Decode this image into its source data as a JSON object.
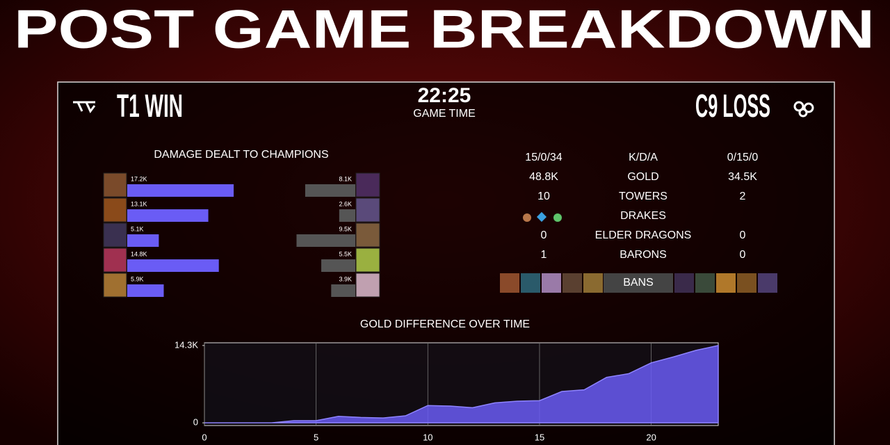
{
  "header": {
    "title": "POST GAME BREAKDOWN",
    "team_left": "T1 WIN",
    "game_time": "22:25",
    "game_time_label": "GAME TIME",
    "team_right": "C9 LOSS"
  },
  "stats": {
    "rows": [
      {
        "left": "15/0/34",
        "label": "K/D/A",
        "right": "0/15/0"
      },
      {
        "left": "48.8K",
        "label": "GOLD",
        "right": "34.5K"
      },
      {
        "left": "10",
        "label": "TOWERS",
        "right": "2"
      },
      {
        "label": "DRAKES"
      },
      {
        "left": "0",
        "label": "ELDER DRAGONS",
        "right": "0"
      },
      {
        "left": "1",
        "label": "BARONS",
        "right": "0"
      }
    ],
    "bans_label": "BANS"
  },
  "chart_data": [
    {
      "type": "mirror-bar",
      "title": "DAMAGE DEALT TO CHAMPIONS",
      "series": [
        {
          "color": "#6a5cf5",
          "values": [
            17.2,
            13.1,
            5.1,
            14.8,
            5.9
          ],
          "value_labels": [
            "17.2K",
            "13.1K",
            "5.1K",
            "14.8K",
            "5.9K"
          ]
        },
        {
          "color": "#555555",
          "values": [
            8.1,
            2.6,
            9.5,
            5.5,
            3.9
          ],
          "value_labels": [
            "8.1K",
            "2.6K",
            "9.5K",
            "5.5K",
            "3.9K"
          ]
        }
      ]
    },
    {
      "type": "area",
      "title": "GOLD DIFFERENCE OVER TIME",
      "x": [
        0,
        1,
        2,
        3,
        4,
        5,
        6,
        7,
        8,
        9,
        10,
        11,
        12,
        13,
        14,
        15,
        16,
        17,
        18,
        19,
        20,
        21,
        22,
        23
      ],
      "values": [
        0,
        0,
        0,
        0,
        0.4,
        0.4,
        1.2,
        1.0,
        0.9,
        1.3,
        3.2,
        3.1,
        2.8,
        3.7,
        4.0,
        4.1,
        5.8,
        6.1,
        8.4,
        9.1,
        11.1,
        12.2,
        13.4,
        14.3
      ],
      "color": "#6a5cf5",
      "xlim": [
        0,
        23
      ],
      "ylim": [
        -0.5,
        14.8
      ],
      "xticks": [
        0,
        5,
        10,
        15,
        20
      ],
      "yticks": [
        0,
        {
          "value": 14.3,
          "label": "14.3K"
        }
      ],
      "grid": true
    }
  ]
}
